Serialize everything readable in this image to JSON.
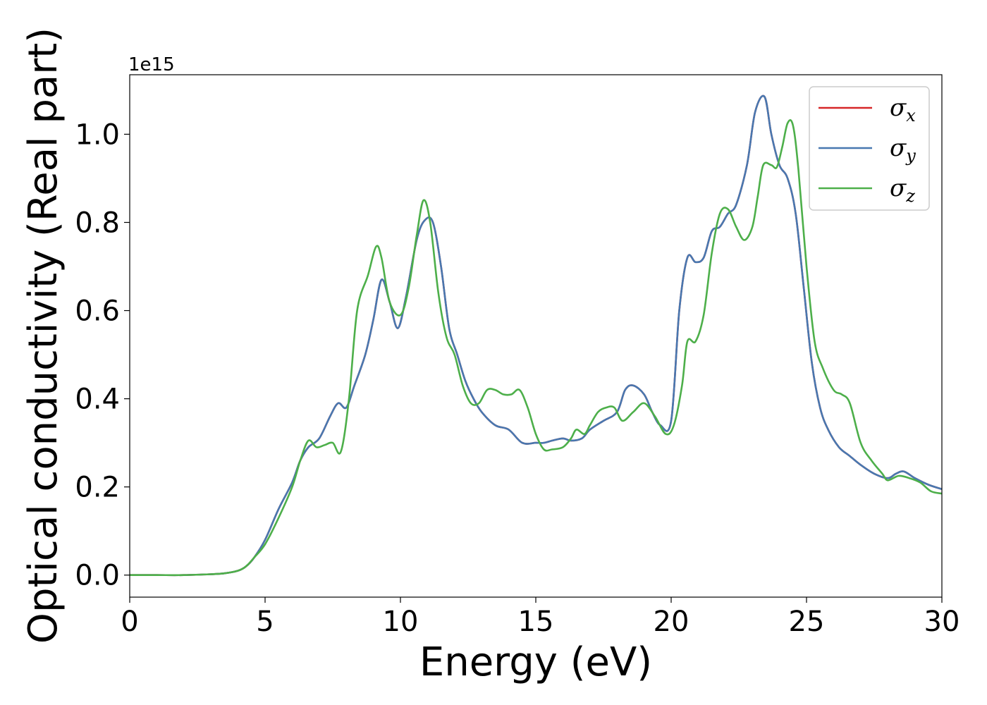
{
  "chart_data": {
    "type": "line",
    "xlabel": "Energy (eV)",
    "ylabel": "Optical conductivity (Real part)",
    "y_offset_label": "1e15",
    "y_multiplier": 1000000000000000.0,
    "xlim": [
      0,
      30
    ],
    "ylim": [
      -0.05,
      1.135
    ],
    "x_ticks": [
      0,
      5,
      10,
      15,
      20,
      25,
      30
    ],
    "y_ticks": [
      0.0,
      0.2,
      0.4,
      0.6,
      0.8,
      1.0
    ],
    "y_tick_labels": [
      "0.0",
      "0.2",
      "0.4",
      "0.6",
      "0.8",
      "1.0"
    ],
    "grid": false,
    "legend_position": "top-right",
    "series": [
      {
        "name": "σx",
        "symbol": "σ",
        "subscript": "x",
        "color": "#d62728",
        "x": [
          0,
          1,
          2,
          3,
          3.5,
          4,
          4.3,
          4.6,
          5,
          5.5,
          6,
          6.3,
          6.6,
          7,
          7.4,
          7.7,
          8,
          8.3,
          8.7,
          9,
          9.3,
          9.6,
          9.9,
          10.2,
          10.6,
          10.9,
          11.2,
          11.5,
          11.8,
          12.1,
          12.4,
          12.7,
          13,
          13.5,
          14,
          14.5,
          15,
          15.3,
          15.6,
          16,
          16.3,
          16.7,
          17,
          17.5,
          18,
          18.3,
          18.6,
          19,
          19.3,
          19.6,
          20,
          20.3,
          20.6,
          20.9,
          21.2,
          21.5,
          21.8,
          22.1,
          22.4,
          22.8,
          23.1,
          23.45,
          23.7,
          24,
          24.3,
          24.6,
          24.9,
          25.2,
          25.5,
          25.8,
          26.2,
          26.6,
          27,
          27.5,
          28,
          28.3,
          28.6,
          29,
          29.5,
          30
        ],
        "y": [
          0,
          0,
          0,
          0.002,
          0.004,
          0.01,
          0.02,
          0.04,
          0.08,
          0.15,
          0.21,
          0.26,
          0.29,
          0.31,
          0.36,
          0.39,
          0.38,
          0.43,
          0.5,
          0.58,
          0.67,
          0.62,
          0.56,
          0.63,
          0.76,
          0.805,
          0.8,
          0.7,
          0.56,
          0.5,
          0.44,
          0.4,
          0.37,
          0.34,
          0.33,
          0.3,
          0.3,
          0.3,
          0.305,
          0.31,
          0.305,
          0.31,
          0.33,
          0.35,
          0.37,
          0.42,
          0.43,
          0.41,
          0.37,
          0.34,
          0.35,
          0.6,
          0.72,
          0.71,
          0.72,
          0.78,
          0.79,
          0.82,
          0.84,
          0.93,
          1.05,
          1.085,
          1.0,
          0.93,
          0.9,
          0.82,
          0.65,
          0.48,
          0.38,
          0.33,
          0.29,
          0.27,
          0.25,
          0.23,
          0.22,
          0.23,
          0.235,
          0.22,
          0.205,
          0.195
        ]
      },
      {
        "name": "σy",
        "symbol": "σ",
        "subscript": "y",
        "color": "#4878b0",
        "x": [
          0,
          1,
          2,
          3,
          3.5,
          4,
          4.3,
          4.6,
          5,
          5.5,
          6,
          6.3,
          6.6,
          7,
          7.4,
          7.7,
          8,
          8.3,
          8.7,
          9,
          9.3,
          9.6,
          9.9,
          10.2,
          10.6,
          10.9,
          11.2,
          11.5,
          11.8,
          12.1,
          12.4,
          12.7,
          13,
          13.5,
          14,
          14.5,
          15,
          15.3,
          15.6,
          16,
          16.3,
          16.7,
          17,
          17.5,
          18,
          18.3,
          18.6,
          19,
          19.3,
          19.6,
          20,
          20.3,
          20.6,
          20.9,
          21.2,
          21.5,
          21.8,
          22.1,
          22.4,
          22.8,
          23.1,
          23.45,
          23.7,
          24,
          24.3,
          24.6,
          24.9,
          25.2,
          25.5,
          25.8,
          26.2,
          26.6,
          27,
          27.5,
          28,
          28.3,
          28.6,
          29,
          29.5,
          30
        ],
        "y": [
          0,
          0,
          0,
          0.002,
          0.004,
          0.01,
          0.02,
          0.04,
          0.08,
          0.15,
          0.21,
          0.26,
          0.29,
          0.31,
          0.36,
          0.39,
          0.38,
          0.43,
          0.5,
          0.58,
          0.67,
          0.62,
          0.56,
          0.63,
          0.76,
          0.805,
          0.8,
          0.7,
          0.56,
          0.5,
          0.44,
          0.4,
          0.37,
          0.34,
          0.33,
          0.3,
          0.3,
          0.3,
          0.305,
          0.31,
          0.305,
          0.31,
          0.33,
          0.35,
          0.37,
          0.42,
          0.43,
          0.41,
          0.37,
          0.34,
          0.35,
          0.6,
          0.72,
          0.71,
          0.72,
          0.78,
          0.79,
          0.82,
          0.84,
          0.93,
          1.05,
          1.085,
          1.0,
          0.93,
          0.9,
          0.82,
          0.65,
          0.48,
          0.38,
          0.33,
          0.29,
          0.27,
          0.25,
          0.23,
          0.22,
          0.23,
          0.235,
          0.22,
          0.205,
          0.195
        ]
      },
      {
        "name": "σz",
        "symbol": "σ",
        "subscript": "z",
        "color": "#4daf4a",
        "x": [
          0,
          1,
          2,
          3,
          3.5,
          4,
          4.3,
          4.6,
          5,
          5.5,
          6,
          6.3,
          6.6,
          6.9,
          7.2,
          7.5,
          7.8,
          8.1,
          8.4,
          8.8,
          9.1,
          9.3,
          9.6,
          10,
          10.3,
          10.6,
          10.85,
          11.1,
          11.4,
          11.7,
          12,
          12.3,
          12.6,
          12.9,
          13.2,
          13.5,
          13.8,
          14.1,
          14.4,
          14.7,
          15,
          15.3,
          15.6,
          16,
          16.3,
          16.5,
          16.8,
          17,
          17.3,
          17.6,
          17.9,
          18.2,
          18.6,
          19,
          19.4,
          19.8,
          20.1,
          20.4,
          20.6,
          20.9,
          21.2,
          21.5,
          21.8,
          22.1,
          22.4,
          22.7,
          23,
          23.2,
          23.4,
          23.7,
          23.9,
          24.1,
          24.3,
          24.5,
          24.7,
          25,
          25.3,
          25.6,
          26,
          26.3,
          26.6,
          27,
          27.4,
          27.8,
          28,
          28.4,
          28.8,
          29.2,
          29.6,
          30
        ],
        "y": [
          0,
          0,
          0,
          0.002,
          0.004,
          0.01,
          0.02,
          0.04,
          0.07,
          0.13,
          0.2,
          0.26,
          0.305,
          0.29,
          0.295,
          0.3,
          0.28,
          0.4,
          0.6,
          0.68,
          0.745,
          0.72,
          0.62,
          0.59,
          0.65,
          0.77,
          0.85,
          0.8,
          0.64,
          0.54,
          0.5,
          0.43,
          0.39,
          0.39,
          0.42,
          0.42,
          0.41,
          0.41,
          0.42,
          0.38,
          0.32,
          0.285,
          0.285,
          0.29,
          0.31,
          0.33,
          0.32,
          0.34,
          0.37,
          0.38,
          0.38,
          0.35,
          0.37,
          0.39,
          0.36,
          0.32,
          0.34,
          0.43,
          0.53,
          0.53,
          0.59,
          0.73,
          0.82,
          0.83,
          0.79,
          0.76,
          0.79,
          0.86,
          0.93,
          0.93,
          0.925,
          0.97,
          1.025,
          1.02,
          0.92,
          0.7,
          0.53,
          0.47,
          0.42,
          0.41,
          0.39,
          0.3,
          0.26,
          0.23,
          0.215,
          0.225,
          0.22,
          0.21,
          0.19,
          0.185
        ]
      }
    ]
  }
}
